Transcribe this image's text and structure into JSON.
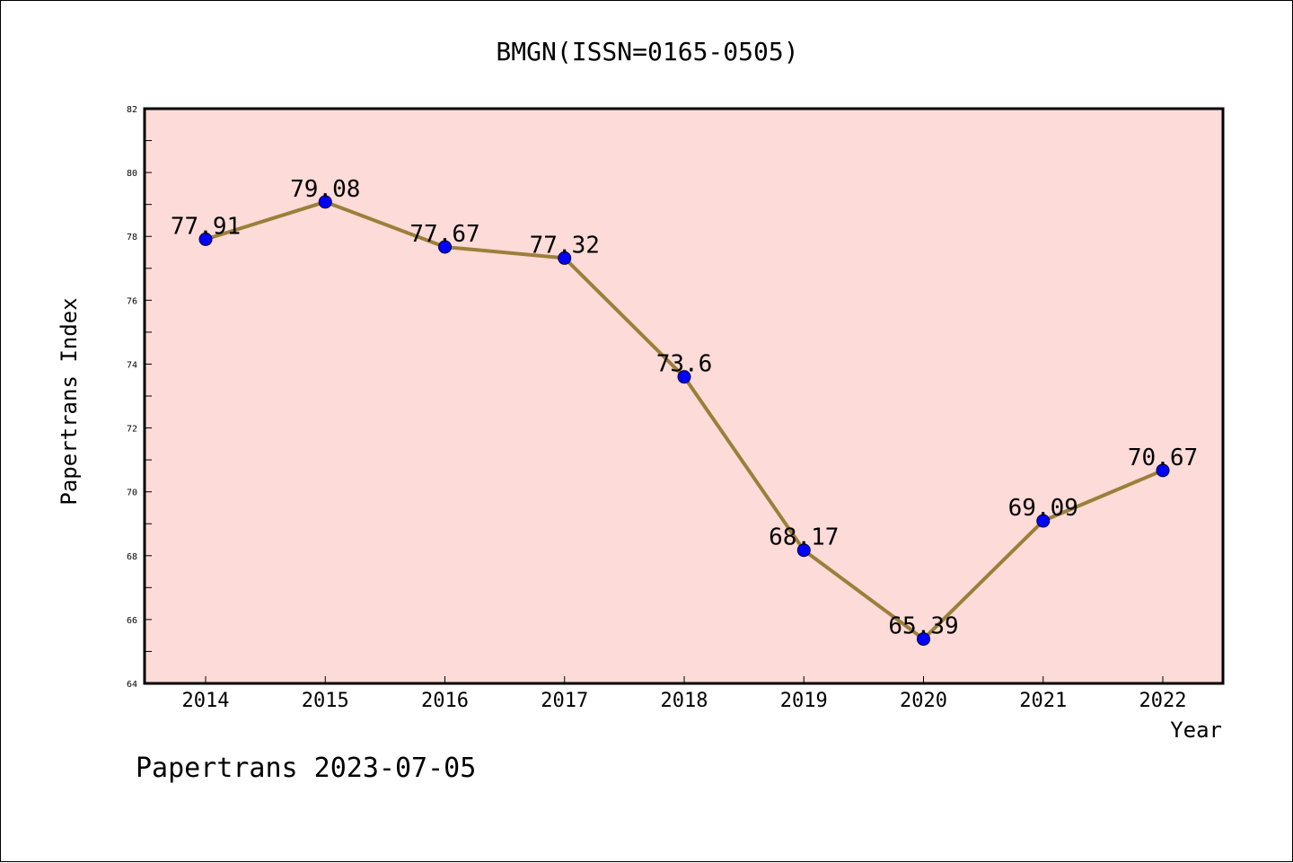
{
  "chart_data": {
    "type": "line",
    "title": "BMGN(ISSN=0165-0505)",
    "xlabel": "Year",
    "ylabel": "Papertrans Index",
    "categories": [
      "2014",
      "2015",
      "2016",
      "2017",
      "2018",
      "2019",
      "2020",
      "2021",
      "2022"
    ],
    "series": [
      {
        "values": [
          77.91,
          79.08,
          77.67,
          77.32,
          73.6,
          68.17,
          65.39,
          69.09,
          70.67
        ],
        "labels": [
          "77.91",
          "79.08",
          "77.67",
          "77.32",
          "73.6",
          "68.17",
          "65.39",
          "69.09",
          "70.67"
        ]
      }
    ],
    "ylim": [
      64,
      82
    ],
    "yticks": [
      64,
      66,
      68,
      70,
      72,
      74,
      76,
      78,
      80,
      82
    ],
    "ytick_labels": [
      "64",
      "66",
      "68",
      "70",
      "72",
      "74",
      "76",
      "78",
      "80",
      "82"
    ],
    "grid": false,
    "colors": {
      "plot_background": "#fddbd8",
      "line": "#9b7f3a",
      "marker": "#0000ff"
    }
  },
  "footer": "Papertrans 2023-07-05"
}
